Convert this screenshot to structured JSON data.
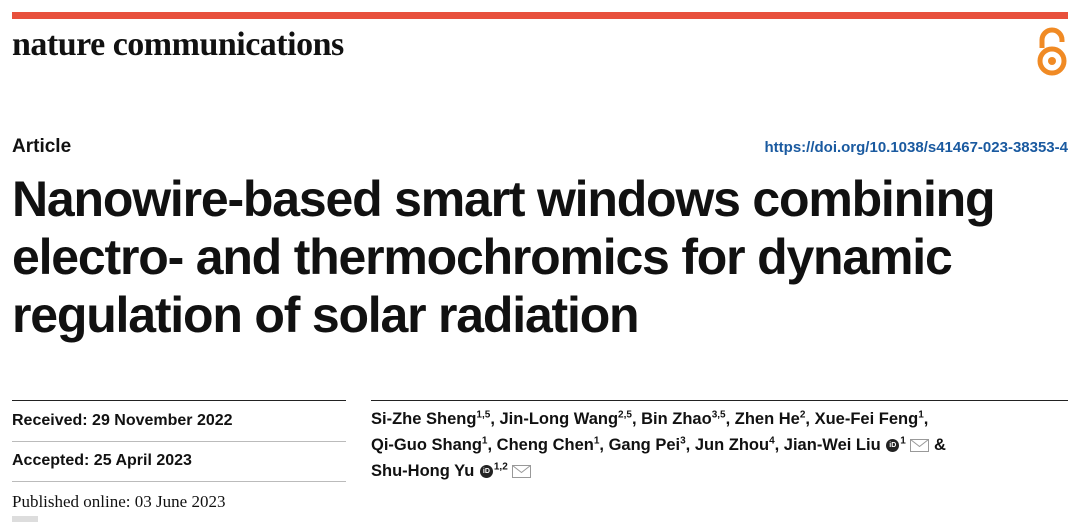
{
  "journal": {
    "name": "nature communications",
    "accent": "#e8503c",
    "oa_icon": "open-access-icon"
  },
  "article": {
    "type": "Article",
    "doi": "https://doi.org/10.1038/s41467-023-38353-4",
    "title_lines": [
      "Nanowire-based smart windows combining",
      "electro- and thermochromics for dynamic",
      "regulation of solar radiation"
    ]
  },
  "dates": {
    "received": "Received: 29 November 2022",
    "accepted": "Accepted: 25 April 2023",
    "published": "Published online: 03 June 2023"
  },
  "authors": [
    {
      "name": "Si-Zhe Sheng",
      "aff": "1,5"
    },
    {
      "name": "Jin-Long Wang",
      "aff": "2,5"
    },
    {
      "name": "Bin Zhao",
      "aff": "3,5"
    },
    {
      "name": "Zhen He",
      "aff": "2"
    },
    {
      "name": "Xue-Fei Feng",
      "aff": "1"
    },
    {
      "name": "Qi-Guo Shang",
      "aff": "1"
    },
    {
      "name": "Cheng Chen",
      "aff": "1"
    },
    {
      "name": "Gang Pei",
      "aff": "3"
    },
    {
      "name": "Jun Zhou",
      "aff": "4"
    },
    {
      "name": "Jian-Wei Liu",
      "aff": "1"
    },
    {
      "name": "Shu-Hong Yu",
      "aff": "1,2"
    }
  ],
  "authors_conjunction": "&"
}
